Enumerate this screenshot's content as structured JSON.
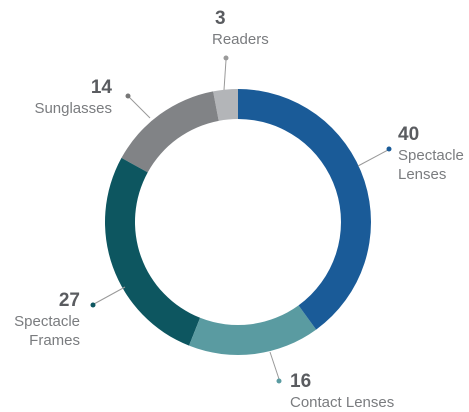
{
  "chart_data": {
    "type": "donut",
    "categories": [
      "Spectacle Lenses",
      "Contact Lenses",
      "Spectacle Frames",
      "Sunglasses",
      "Readers"
    ],
    "values": [
      40,
      16,
      27,
      14,
      3
    ],
    "colors": [
      "#1a5b98",
      "#5a9ba1",
      "#0d5660",
      "#818386",
      "#b3b5b8"
    ]
  }
}
